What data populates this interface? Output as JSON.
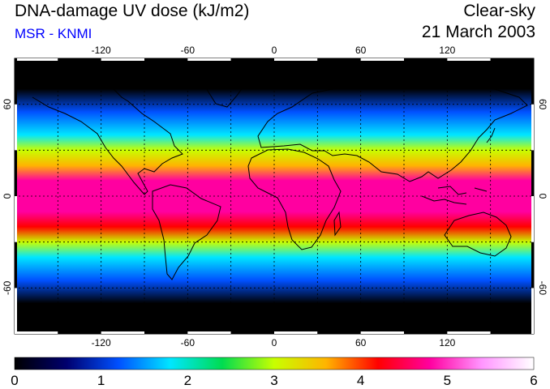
{
  "header": {
    "title": "DNA-damage UV dose (kJ/m2)",
    "subtitle": "MSR - KNMI",
    "condition": "Clear-sky",
    "date": "21 March 2003"
  },
  "map": {
    "lon_ticks": [
      "-120",
      "-60",
      "0",
      "60",
      "120"
    ],
    "lat_ticks": [
      "60",
      "0",
      "-60"
    ],
    "gridlines": "dashed every 30 degrees"
  },
  "colorbar": {
    "ticks": [
      "0",
      "1",
      "2",
      "3",
      "4",
      "5",
      "6"
    ],
    "colors": [
      "#000000",
      "#00006e",
      "#0050ff",
      "#00e6ff",
      "#00dc50",
      "#c8ff00",
      "#ffb400",
      "#ff0000",
      "#ff00a0",
      "#ff96ff",
      "#ffffff"
    ]
  },
  "chart_data": {
    "type": "heatmap",
    "title": "DNA-damage UV dose (kJ/m2)",
    "value_range": [
      0,
      6
    ],
    "latitude_band_values": [
      {
        "lat": 90,
        "value": 0.0
      },
      {
        "lat": 70,
        "value": 0.3
      },
      {
        "lat": 55,
        "value": 1.0
      },
      {
        "lat": 40,
        "value": 2.0
      },
      {
        "lat": 30,
        "value": 2.8
      },
      {
        "lat": 20,
        "value": 3.8
      },
      {
        "lat": 10,
        "value": 4.6
      },
      {
        "lat": 0,
        "value": 5.0
      },
      {
        "lat": -10,
        "value": 5.0
      },
      {
        "lat": -20,
        "value": 4.3
      },
      {
        "lat": -30,
        "value": 3.0
      },
      {
        "lat": -40,
        "value": 2.0
      },
      {
        "lat": -55,
        "value": 1.0
      },
      {
        "lat": -70,
        "value": 0.3
      },
      {
        "lat": -90,
        "value": 0.0
      }
    ]
  }
}
